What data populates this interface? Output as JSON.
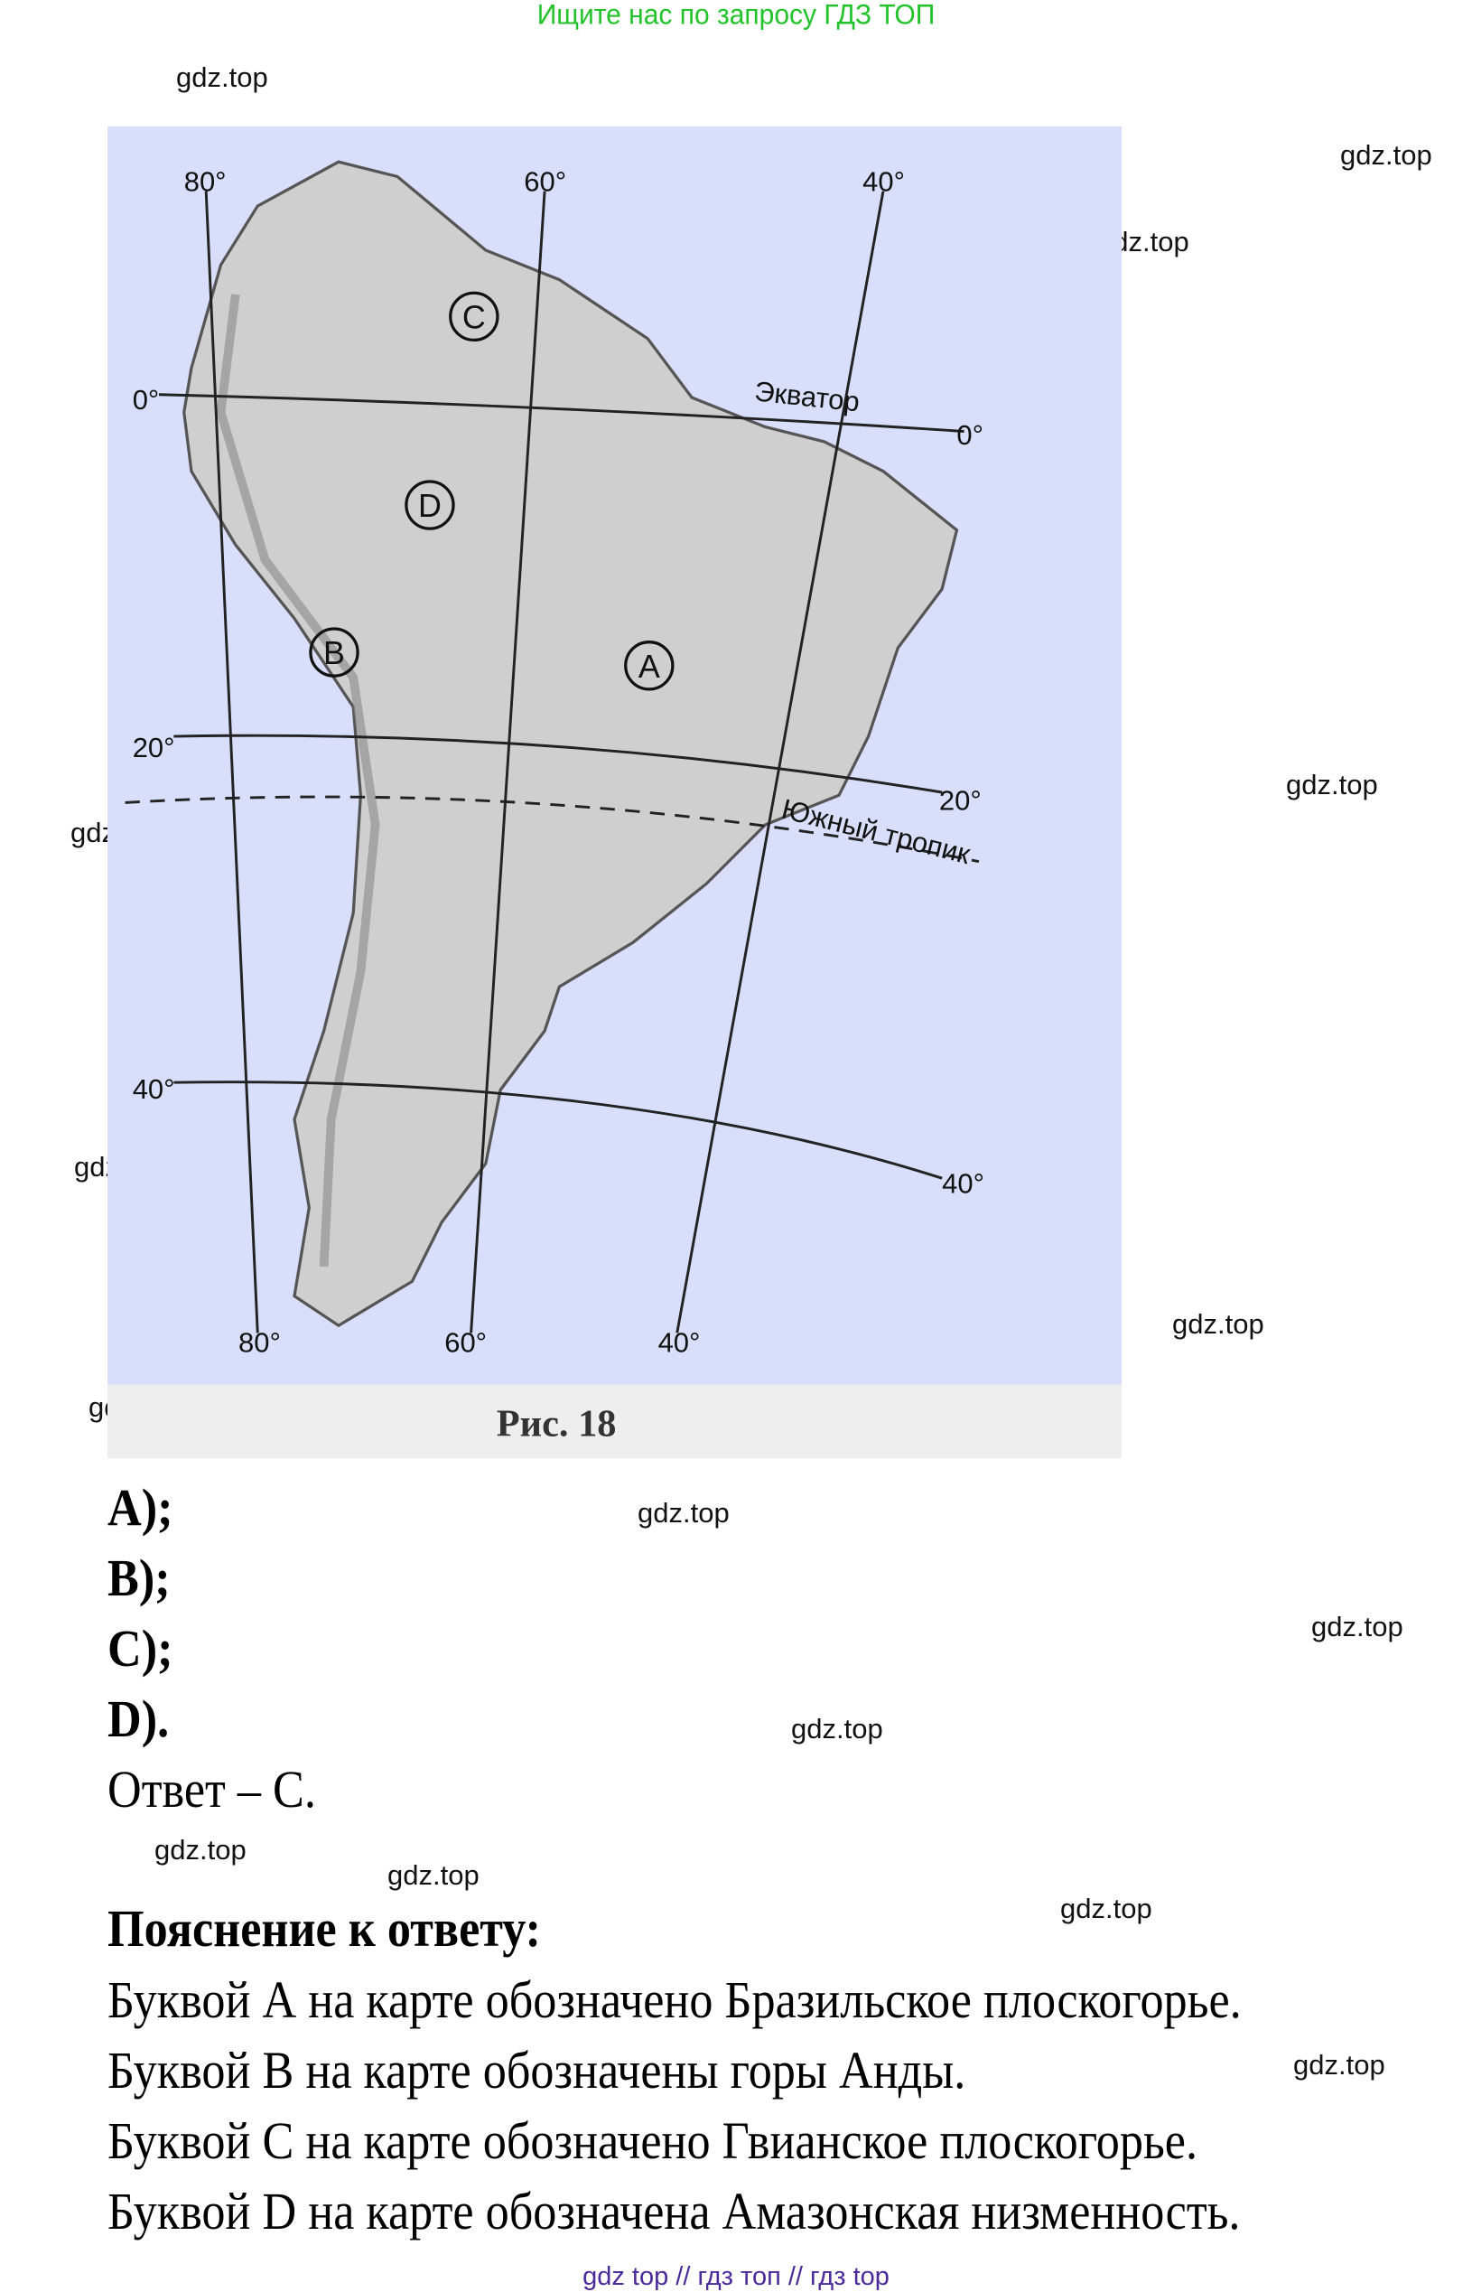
{
  "banner": "Ищите нас по запросу ГДЗ ТОП",
  "watermark": "gdz.top",
  "map": {
    "colors": {
      "water": "#d9defa",
      "land": "#cfcfcf",
      "coast": "#555555"
    },
    "meridians_top": [
      "80°",
      "60°",
      "40°"
    ],
    "meridians_bottom": [
      "80°",
      "60°",
      "40°"
    ],
    "equator_left": "0°",
    "equator_right": "0°",
    "equator_label": "Экватор",
    "lat20_left": "20°",
    "lat20_right": "20°",
    "tropic_label": "Южный тропик",
    "lat40_left": "40°",
    "lat40_right": "40°",
    "markers": [
      "A",
      "B",
      "C",
      "D"
    ],
    "caption": "Рис. 18"
  },
  "options": [
    "A);",
    "B);",
    "C);",
    "D)."
  ],
  "answer": "Ответ – С.",
  "explanation": {
    "title": "Пояснение к ответу:",
    "lines": [
      "Буквой А на карте обозначено Бразильское плоскогорье.",
      "Буквой В на карте обозначены горы Анды.",
      "Буквой С на карте обозначено Гвианское плоскогорье.",
      "Буквой D на карте обозначена Амазонская низменность."
    ]
  },
  "footer": "gdz top  //  гдз топ  //  гдз top"
}
